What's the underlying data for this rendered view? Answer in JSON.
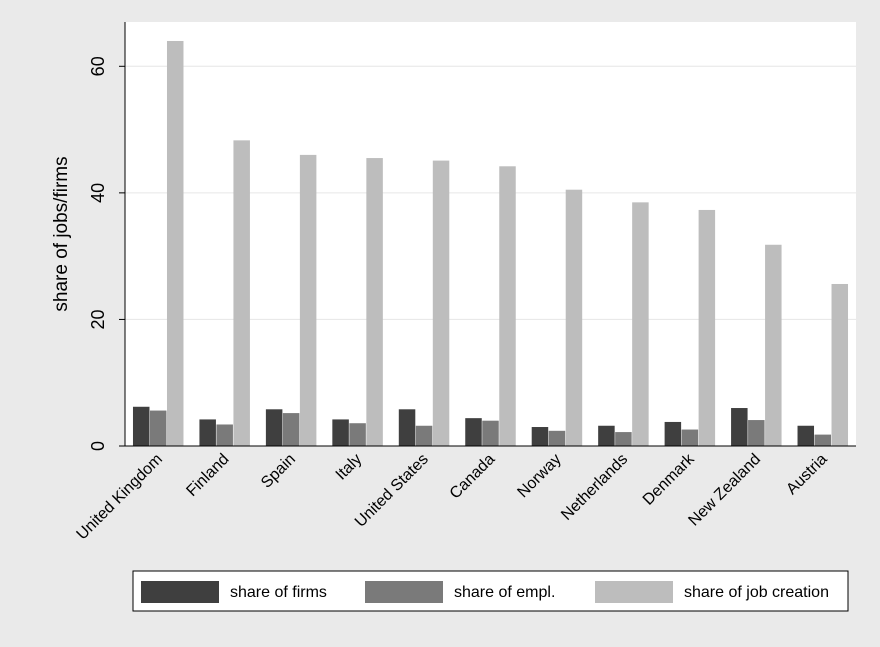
{
  "chart_data": {
    "type": "bar",
    "title": "",
    "xlabel": "",
    "ylabel": "share of jobs/firms",
    "ylim": [
      0,
      67
    ],
    "yticks": [
      0,
      20,
      40,
      60
    ],
    "grid": true,
    "legend_position": "bottom",
    "categories": [
      "United Kingdom",
      "Finland",
      "Spain",
      "Italy",
      "United States",
      "Canada",
      "Norway",
      "Netherlands",
      "Denmark",
      "New Zealand",
      "Austria"
    ],
    "series": [
      {
        "name": "share of firms",
        "color": "#3f3f3f",
        "values": [
          6.2,
          4.2,
          5.8,
          4.2,
          5.8,
          4.4,
          3.0,
          3.2,
          3.8,
          6.0,
          3.2
        ]
      },
      {
        "name": "share of empl.",
        "color": "#7a7a7a",
        "values": [
          5.6,
          3.4,
          5.2,
          3.6,
          3.2,
          4.0,
          2.4,
          2.2,
          2.6,
          4.1,
          1.8
        ]
      },
      {
        "name": "share of job creation",
        "color": "#bdbdbd",
        "values": [
          64.0,
          48.3,
          46.0,
          45.5,
          45.1,
          44.2,
          40.5,
          38.5,
          37.3,
          31.8,
          25.6
        ]
      }
    ]
  }
}
